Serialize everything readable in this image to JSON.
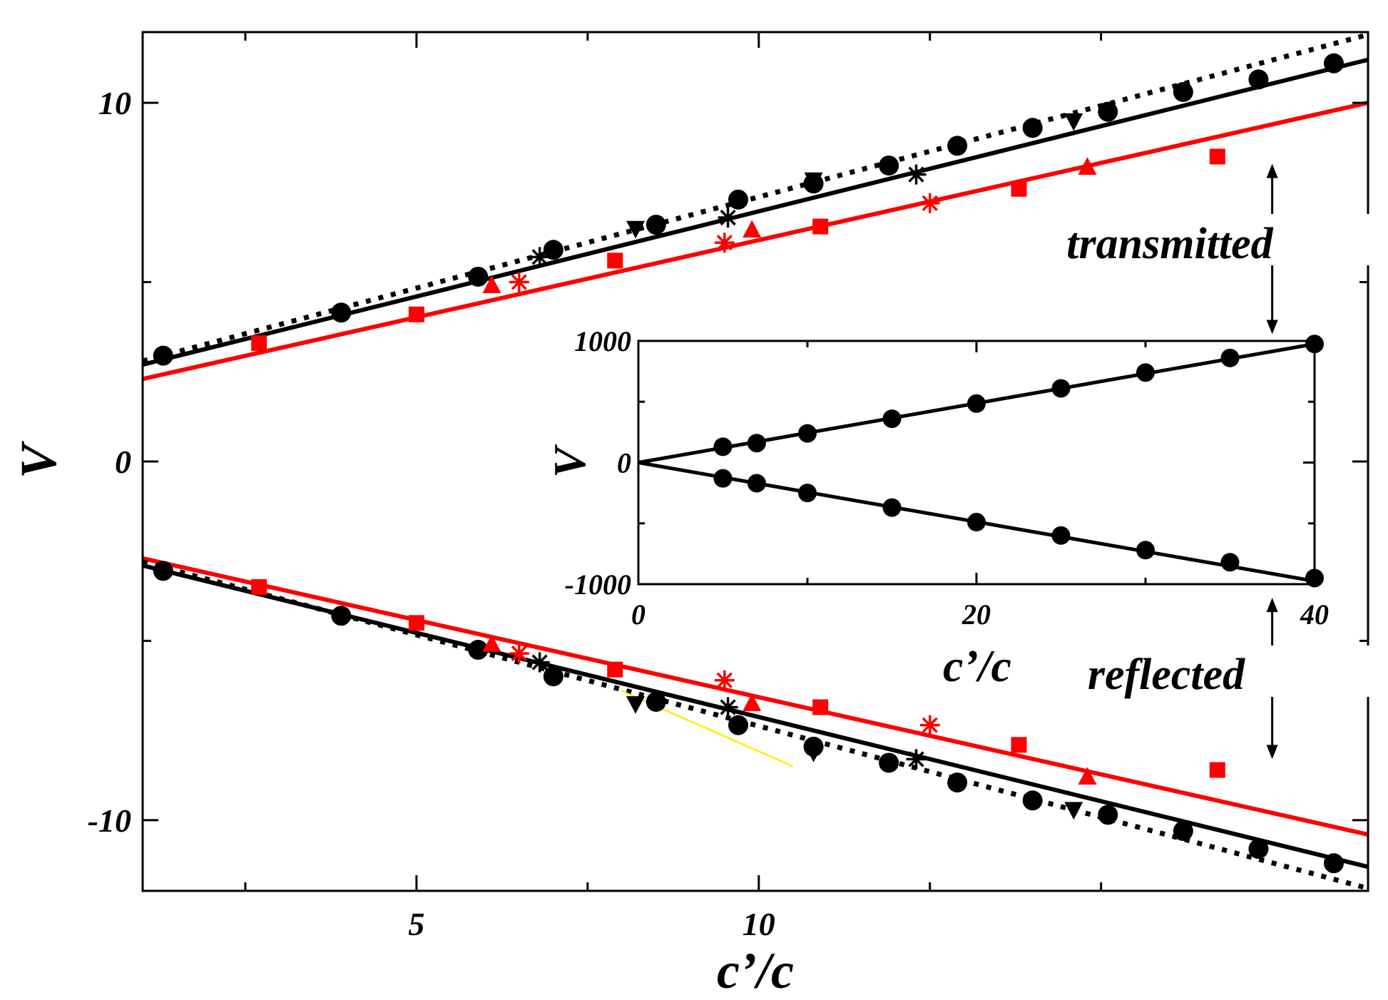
{
  "chart_data": {
    "type": "line",
    "main": {
      "xlabel": "c’/c",
      "ylabel": "V",
      "xlim": [
        1.0,
        18.9
      ],
      "ylim": [
        -11.97,
        11.97
      ],
      "xticks": [
        5,
        10
      ],
      "xtick_labels": [
        "5",
        "10"
      ],
      "yticks": [
        -10,
        0,
        10
      ],
      "ytick_labels": [
        "-10",
        "0",
        "10"
      ],
      "lines": [
        {
          "name": "black solid (upper)",
          "color": "#000000",
          "style": "solid",
          "x": [
            1.0,
            18.9
          ],
          "y": [
            2.7,
            11.2
          ]
        },
        {
          "name": "black solid (lower)",
          "color": "#000000",
          "style": "solid",
          "x": [
            1.0,
            18.9
          ],
          "y": [
            -2.9,
            -11.3
          ]
        },
        {
          "name": "red solid (upper)",
          "color": "#ff0000",
          "style": "solid",
          "x": [
            1.0,
            18.9
          ],
          "y": [
            2.3,
            10.0
          ]
        },
        {
          "name": "red solid (lower)",
          "color": "#ff0000",
          "style": "solid",
          "x": [
            1.0,
            18.9
          ],
          "y": [
            -2.7,
            -10.4
          ]
        },
        {
          "name": "black dotted (upper)",
          "color": "#000000",
          "style": "dotted",
          "x": [
            1.0,
            18.9
          ],
          "y": [
            2.8,
            11.9
          ]
        },
        {
          "name": "black dotted (lower)",
          "color": "#000000",
          "style": "dotted",
          "x": [
            1.0,
            18.9
          ],
          "y": [
            -2.8,
            -11.9
          ]
        },
        {
          "name": "yellow thin (lower)",
          "color": "#ffee00",
          "style": "thin",
          "x": [
            8.0,
            10.5
          ],
          "y": [
            -6.4,
            -8.5
          ]
        }
      ],
      "series": [
        {
          "name": "black circles",
          "marker": "circle",
          "color": "#000000",
          "x": [
            1.3,
            3.9,
            5.9,
            7.0,
            8.5,
            9.7,
            10.8,
            11.9,
            12.9,
            14.0,
            15.1,
            16.2,
            17.3,
            18.4
          ],
          "y": [
            2.95,
            4.15,
            5.15,
            5.9,
            6.6,
            7.3,
            7.75,
            8.25,
            8.8,
            9.3,
            9.75,
            10.3,
            10.65,
            11.1
          ]
        },
        {
          "name": "black circles (lower)",
          "marker": "circle",
          "color": "#000000",
          "x": [
            1.3,
            3.9,
            5.9,
            7.0,
            8.5,
            9.7,
            10.8,
            11.9,
            12.9,
            14.0,
            15.1,
            16.2,
            17.3,
            18.4
          ],
          "y": [
            -3.05,
            -4.3,
            -5.25,
            -5.99,
            -6.7,
            -7.35,
            -7.95,
            -8.4,
            -8.95,
            -9.45,
            -9.85,
            -10.3,
            -10.8,
            -11.2
          ]
        },
        {
          "name": "black triangles down",
          "marker": "triangle-down",
          "color": "#000000",
          "x": [
            8.2,
            10.8,
            14.6
          ],
          "y": [
            6.5,
            7.85,
            9.5
          ]
        },
        {
          "name": "black triangles down (lower)",
          "marker": "triangle-down",
          "color": "#000000",
          "x": [
            8.2,
            10.8,
            14.6
          ],
          "y": [
            -6.75,
            -8.1,
            -9.7
          ]
        },
        {
          "name": "black asterisks",
          "marker": "asterisk",
          "color": "#000000",
          "x": [
            6.8,
            9.55,
            12.3
          ],
          "y": [
            5.7,
            6.8,
            8.0
          ]
        },
        {
          "name": "black asterisks (lower)",
          "marker": "asterisk",
          "color": "#000000",
          "x": [
            6.8,
            9.55,
            12.3
          ],
          "y": [
            -5.6,
            -6.85,
            -8.3
          ]
        },
        {
          "name": "red squares",
          "marker": "square",
          "color": "#ff0000",
          "x": [
            2.7,
            5.0,
            7.9,
            10.9,
            13.8,
            16.7
          ],
          "y": [
            3.3,
            4.1,
            5.6,
            6.55,
            7.6,
            8.5
          ]
        },
        {
          "name": "red squares (lower)",
          "marker": "square",
          "color": "#ff0000",
          "x": [
            2.7,
            5.0,
            7.9,
            10.9,
            13.8,
            16.7
          ],
          "y": [
            -3.5,
            -4.5,
            -5.8,
            -6.85,
            -7.9,
            -8.6
          ]
        },
        {
          "name": "red triangles up",
          "marker": "triangle-up",
          "color": "#ff0000",
          "x": [
            6.1,
            9.9,
            14.8
          ],
          "y": [
            4.9,
            6.45,
            8.2
          ]
        },
        {
          "name": "red triangles up (lower)",
          "marker": "triangle-up",
          "color": "#ff0000",
          "x": [
            6.1,
            9.9,
            14.8
          ],
          "y": [
            -5.1,
            -6.75,
            -8.8
          ]
        },
        {
          "name": "red asterisks",
          "marker": "asterisk",
          "color": "#ff0000",
          "x": [
            6.5,
            9.5,
            12.5
          ],
          "y": [
            5.0,
            6.1,
            7.2
          ]
        },
        {
          "name": "red asterisks (lower)",
          "marker": "asterisk",
          "color": "#ff0000",
          "x": [
            6.5,
            9.5,
            12.5
          ],
          "y": [
            -5.35,
            -6.1,
            -7.35
          ]
        }
      ],
      "annotations": [
        {
          "text": "transmitted",
          "arrow_x": 17.5,
          "arrow_from_y": 8.3,
          "arrow_to_y": 3.55
        },
        {
          "text": "reflected",
          "arrow_x": 17.5,
          "arrow_from_y": -3.8,
          "arrow_to_y": -8.3
        }
      ]
    },
    "inset": {
      "xlabel": "c’/c",
      "ylabel": "V",
      "xlim": [
        0,
        40
      ],
      "ylim": [
        -1000,
        1000
      ],
      "xticks": [
        0,
        20,
        40
      ],
      "xtick_labels": [
        "0",
        "20",
        "40"
      ],
      "yticks": [
        -1000,
        0,
        1000
      ],
      "ytick_labels": [
        "-1000",
        "0",
        "1000"
      ],
      "minor_yticks": [
        -500,
        500
      ],
      "minor_xticks": [
        10,
        30
      ],
      "lines": [
        {
          "name": "upper",
          "x": [
            0,
            40
          ],
          "y": [
            0,
            975
          ]
        },
        {
          "name": "lower",
          "x": [
            0,
            40
          ],
          "y": [
            0,
            -975
          ]
        }
      ],
      "series": [
        {
          "name": "upper circles",
          "marker": "circle",
          "x": [
            5,
            7,
            10,
            15,
            20,
            25,
            30,
            35,
            40
          ],
          "y": [
            130,
            160,
            240,
            360,
            485,
            610,
            740,
            860,
            975
          ]
        },
        {
          "name": "lower circles",
          "marker": "circle",
          "x": [
            5,
            7,
            10,
            15,
            20,
            25,
            30,
            35,
            40
          ],
          "y": [
            -130,
            -170,
            -250,
            -370,
            -490,
            -600,
            -720,
            -820,
            -950
          ]
        }
      ]
    }
  }
}
